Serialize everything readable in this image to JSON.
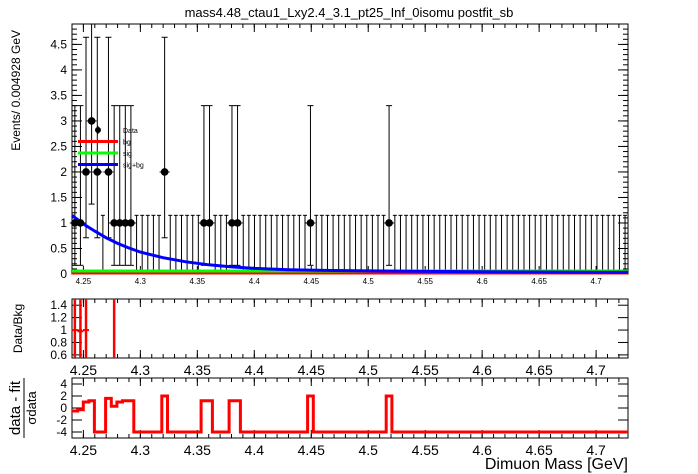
{
  "title": "mass4.48_ctau1_Lxy2.4_3.1_pt25_Inf_0isomu   postfit_sb",
  "xlabel": "Dimuon Mass [GeV]",
  "colors": {
    "bg": "#ff0000",
    "sig": "#00ff00",
    "sigbg": "#0000ff",
    "data": "#000000",
    "ratio": "#ff0000"
  },
  "chart_data": [
    {
      "type": "scatter",
      "panel": "main",
      "ylabel": "Events/ 0.004928 GeV",
      "xlim": [
        4.24,
        4.728
      ],
      "ylim": [
        0,
        4.9
      ],
      "x_ticks": [
        "4.25",
        "4.3",
        "4.35",
        "4.4",
        "4.45",
        "4.5",
        "4.55",
        "4.6",
        "4.65",
        "4.7"
      ],
      "y_ticks": [
        "0",
        "0.5",
        "1",
        "1.5",
        "2",
        "2.5",
        "3",
        "3.5",
        "4",
        "4.5"
      ],
      "legend": {
        "position": "top-left",
        "entries": [
          "Data",
          "bg",
          "sig",
          "sig+bg"
        ]
      },
      "data_points": {
        "x": [
          4.2425,
          4.2474,
          4.2523,
          4.2572,
          4.2622,
          4.272,
          4.277,
          4.2819,
          4.2868,
          4.2917,
          4.3213,
          4.3558,
          4.3607,
          4.3804,
          4.3853,
          4.4493,
          4.5183
        ],
        "y": [
          1,
          1,
          2,
          3,
          2,
          2,
          1,
          1,
          1,
          1,
          2,
          1,
          1,
          1,
          1,
          1,
          1
        ]
      },
      "zero_bins_error_high": 1.15,
      "curves": {
        "sigbg_x": [
          4.24,
          4.25,
          4.26,
          4.27,
          4.28,
          4.29,
          4.3,
          4.32,
          4.34,
          4.36,
          4.38,
          4.4,
          4.43,
          4.46,
          4.5,
          4.55,
          4.6,
          4.65,
          4.7,
          4.728
        ],
        "sigbg_y": [
          1.15,
          0.98,
          0.84,
          0.71,
          0.6,
          0.51,
          0.43,
          0.32,
          0.24,
          0.18,
          0.14,
          0.11,
          0.085,
          0.07,
          0.06,
          0.05,
          0.045,
          0.04,
          0.035,
          0.033
        ],
        "sig_y": 0.02,
        "bg_y": 0.0
      }
    },
    {
      "type": "scatter",
      "panel": "ratio",
      "ylabel": "Data/Bkg",
      "xlim": [
        4.24,
        4.728
      ],
      "ylim": [
        0.55,
        1.5
      ],
      "x_ticks": [
        "4.25",
        "4.3",
        "4.35",
        "4.4",
        "4.45",
        "4.5",
        "4.55",
        "4.6",
        "4.65",
        "4.7"
      ],
      "y_ticks": [
        "0.6",
        "0.8",
        "1",
        "1.2",
        "1.4"
      ],
      "points": {
        "x": [
          4.2425,
          4.2474,
          4.2523
        ],
        "y": [
          1.0,
          0.98,
          1.0
        ]
      },
      "bars_full_range_x": [
        4.2425,
        4.2474,
        4.2523,
        4.277
      ]
    },
    {
      "type": "line",
      "panel": "pull",
      "ylabel": "data - fit",
      "ylabel_denominator": "σdata",
      "xlim": [
        4.24,
        4.728
      ],
      "ylim": [
        -5,
        5
      ],
      "x_ticks": [
        "4.25",
        "4.3",
        "4.35",
        "4.4",
        "4.45",
        "4.5",
        "4.55",
        "4.6",
        "4.65",
        "4.7"
      ],
      "y_ticks": [
        "-4",
        "-2",
        "0",
        "2",
        "4"
      ],
      "baseline": -4.0,
      "steps": [
        [
          4.24,
          4.245,
          -0.5
        ],
        [
          4.245,
          4.2499,
          -0.3
        ],
        [
          4.2499,
          4.2548,
          1.0
        ],
        [
          4.2548,
          4.2597,
          1.2
        ],
        [
          4.2597,
          4.2695,
          -4.0
        ],
        [
          4.2695,
          4.2745,
          1.6
        ],
        [
          4.2745,
          4.2794,
          0.3
        ],
        [
          4.2794,
          4.2843,
          1.0
        ],
        [
          4.2843,
          4.2942,
          1.2
        ],
        [
          4.2942,
          4.3188,
          -4.0
        ],
        [
          4.3188,
          4.3238,
          2.0
        ],
        [
          4.3238,
          4.3533,
          -4.0
        ],
        [
          4.3533,
          4.3632,
          1.2
        ],
        [
          4.3632,
          4.3779,
          -4.0
        ],
        [
          4.3779,
          4.3878,
          1.2
        ],
        [
          4.3878,
          4.4468,
          -4.0
        ],
        [
          4.4468,
          4.4518,
          2.0
        ],
        [
          4.4518,
          4.5158,
          -4.0
        ],
        [
          4.5158,
          4.5208,
          2.0
        ],
        [
          4.5208,
          4.728,
          -4.0
        ]
      ]
    }
  ]
}
